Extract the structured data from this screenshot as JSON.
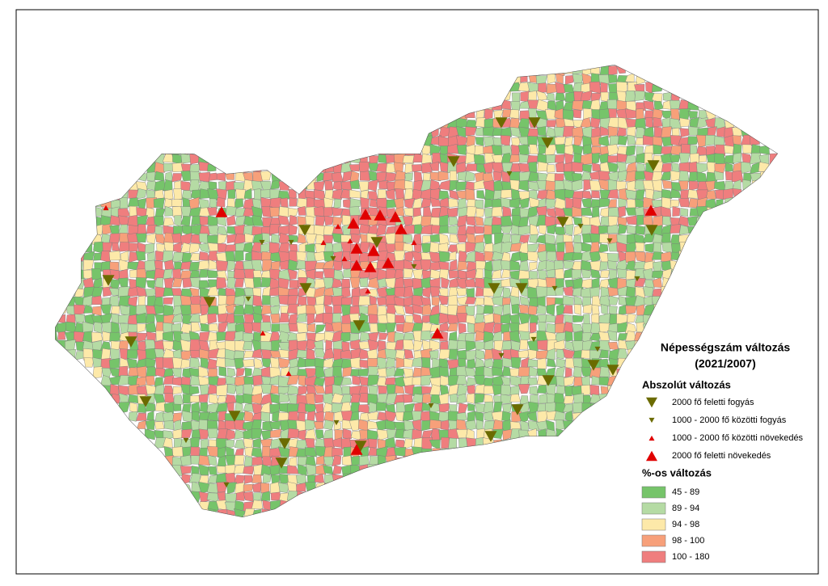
{
  "title": "Népességszám változás",
  "subtitle": "(2021/2007)",
  "legend": {
    "absolute": {
      "title": "Abszolút változás",
      "items": [
        {
          "label": "2000 fő feletti fogyás",
          "color": "#6b6b00"
        },
        {
          "label": "1000 - 2000 fő közötti fogyás",
          "color": "#6b6b00"
        },
        {
          "label": "1000 - 2000 fő közötti növekedés",
          "color": "#e00000"
        },
        {
          "label": "2000 fő feletti növekedés",
          "color": "#e00000"
        }
      ]
    },
    "percent": {
      "title": "%-os változás",
      "items": [
        {
          "label": "45 - 89",
          "color": "#76c46a"
        },
        {
          "label": "89 - 94",
          "color": "#b5dba4"
        },
        {
          "label": "94 - 98",
          "color": "#fde9a9"
        },
        {
          "label": "98 - 100",
          "color": "#f7a07a"
        },
        {
          "label": "100 - 180",
          "color": "#ef7e7e"
        }
      ]
    }
  }
}
